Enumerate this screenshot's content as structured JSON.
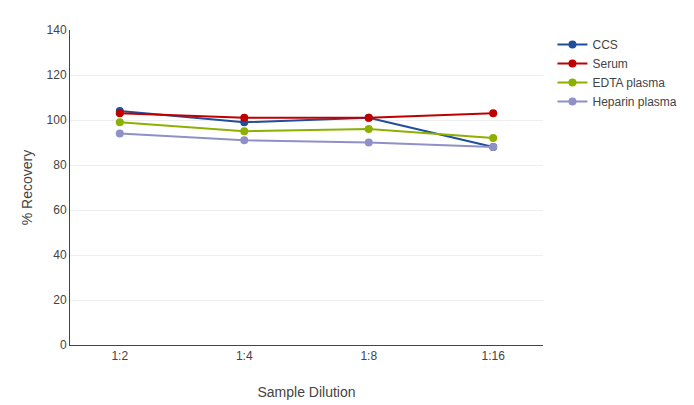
{
  "chart_data": {
    "type": "line",
    "xlabel": "Sample Dilution",
    "ylabel": "% Recovery",
    "categories": [
      "1:2",
      "1:4",
      "1:8",
      "1:16"
    ],
    "series": [
      {
        "name": "CCS",
        "color": "#1f4e9c",
        "values": [
          104,
          99,
          101,
          88
        ]
      },
      {
        "name": "Serum",
        "color": "#c00000",
        "values": [
          103,
          101,
          101,
          103
        ]
      },
      {
        "name": "EDTA plasma",
        "color": "#8db000",
        "values": [
          99,
          95,
          96,
          92
        ]
      },
      {
        "name": "Heparin plasma",
        "color": "#9090c8",
        "values": [
          94,
          91,
          90,
          88
        ]
      }
    ],
    "ylim": [
      0,
      140
    ],
    "yticks": [
      0,
      20,
      40,
      60,
      80,
      100,
      120,
      140
    ],
    "grid": true,
    "legend": "right",
    "marker": "circle"
  }
}
